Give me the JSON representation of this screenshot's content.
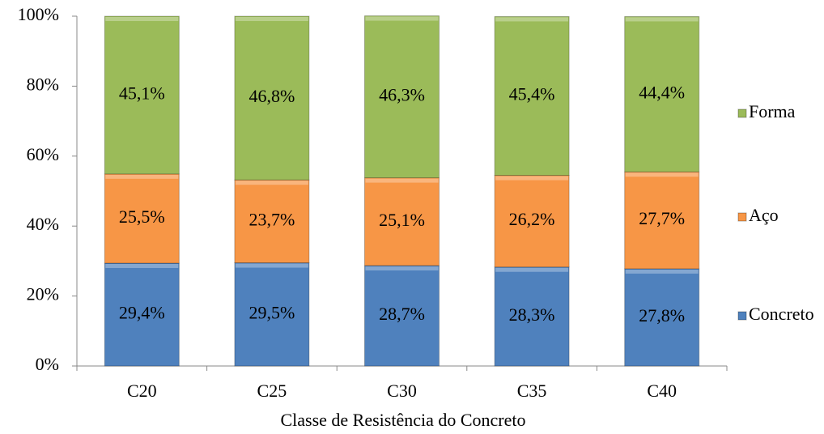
{
  "chart_data": {
    "type": "stacked_bar",
    "x_label": "Classe de Resistência do Concreto",
    "categories": [
      "C20",
      "C25",
      "C30",
      "C35",
      "C40"
    ],
    "series": [
      {
        "name": "Concreto",
        "color": "#4f81bd",
        "values": [
          29.4,
          29.5,
          28.7,
          28.3,
          27.8
        ],
        "value_labels": [
          "29,4%",
          "29,5%",
          "28,7%",
          "28,3%",
          "27,8%"
        ]
      },
      {
        "name": "Aço",
        "color": "#f79646",
        "values": [
          25.5,
          23.7,
          25.1,
          26.2,
          27.7
        ],
        "value_labels": [
          "25,5%",
          "23,7%",
          "25,1%",
          "26,2%",
          "27,7%"
        ]
      },
      {
        "name": "Forma",
        "color": "#9bbb59",
        "values": [
          45.1,
          46.8,
          46.3,
          45.4,
          44.4
        ],
        "value_labels": [
          "45,1%",
          "46,8%",
          "46,3%",
          "45,4%",
          "44,4%"
        ]
      }
    ],
    "ylim": [
      0,
      100
    ],
    "yticks": [
      {
        "value": 0,
        "label": "0%"
      },
      {
        "value": 20,
        "label": "20%"
      },
      {
        "value": 40,
        "label": "40%"
      },
      {
        "value": 60,
        "label": "60%"
      },
      {
        "value": 80,
        "label": "80%"
      },
      {
        "value": 100,
        "label": "100%"
      }
    ],
    "legend": "right"
  }
}
